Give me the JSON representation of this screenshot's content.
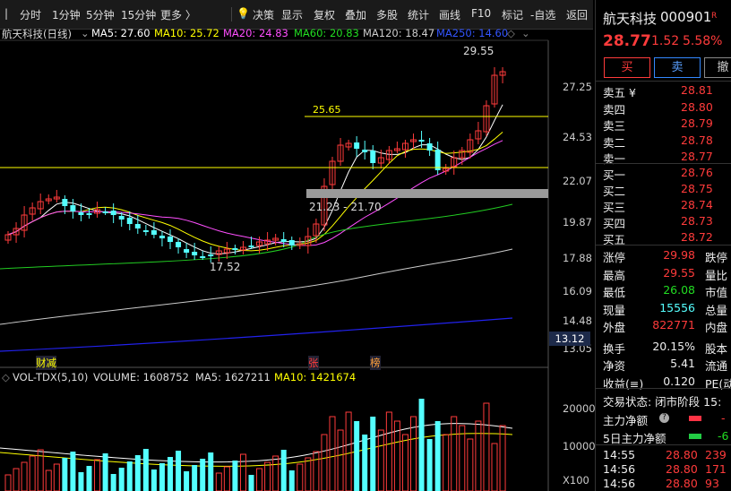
{
  "toolbar": {
    "items": [
      "分时",
      "1分钟",
      "5分钟",
      "15分钟",
      "更多 〉",
      "决策",
      "显示",
      "复权",
      "叠加",
      "多股",
      "统计",
      "画线",
      "F10",
      "标记",
      "-自选",
      "返回"
    ]
  },
  "kline_info": {
    "name": "航天科技(日线)",
    "ma5": "MA5: 27.60",
    "ma10": "MA10: 25.72",
    "ma20": "MA20: 24.83",
    "ma60": "MA60: 20.83",
    "ma120": "MA120: 18.47",
    "ma250": "MA250: 14.60"
  },
  "volume_info": {
    "label": "VOL-TDX(5,10)",
    "volume": "VOLUME: 1608752",
    "ma5": "MA5: 1627211",
    "ma10": "MA10: 1421674"
  },
  "axis": {
    "price_ticks": [
      "27.25",
      "24.53",
      "22.07",
      "19.87",
      "17.88",
      "16.09",
      "14.48",
      "13.05"
    ],
    "current_marker": "13.12",
    "vol_ticks": [
      "20000",
      "10000"
    ],
    "vol_unit": "X100"
  },
  "annotations": {
    "high": "29.55",
    "low": "17.52",
    "line_level": "25.65",
    "gap": "21.23 - 21.70",
    "marks": [
      "财减",
      "张",
      "榜"
    ]
  },
  "quote": {
    "name": "航天科技",
    "code": "000901",
    "tag": "R",
    "price": "28.77",
    "change": "1.52",
    "change_pct": "5.58%",
    "buy_label": "买",
    "sell_label": "卖",
    "cancel_label": "撤"
  },
  "orderbook": {
    "asks": [
      {
        "label": "卖五 ¥",
        "price": "28.81"
      },
      {
        "label": "卖四",
        "price": "28.80"
      },
      {
        "label": "卖三",
        "price": "28.79"
      },
      {
        "label": "卖二",
        "price": "28.78"
      },
      {
        "label": "卖一",
        "price": "28.77"
      }
    ],
    "bids": [
      {
        "label": "买一",
        "price": "28.76"
      },
      {
        "label": "买二",
        "price": "28.75"
      },
      {
        "label": "买三",
        "price": "28.74"
      },
      {
        "label": "买四",
        "price": "28.73"
      },
      {
        "label": "买五",
        "price": "28.72"
      }
    ]
  },
  "stats": [
    {
      "label": "涨停",
      "value": "29.98",
      "label2": "跌停"
    },
    {
      "label": "最高",
      "value": "29.55",
      "label2": "量比"
    },
    {
      "label": "最低",
      "value": "26.08",
      "label2": "市值"
    },
    {
      "label": "现量",
      "value": "15556",
      "label2": "总量"
    },
    {
      "label": "外盘",
      "value": "822771",
      "label2": "内盘"
    },
    {
      "label": "换手",
      "value": "20.15%",
      "label2": "股本"
    },
    {
      "label": "净资",
      "value": "5.41",
      "label2": "流通"
    },
    {
      "label": "收益(≡)",
      "value": "0.120",
      "label2": "PE(动"
    }
  ],
  "trade_status": "交易状态: 闭市阶段 15:",
  "flow": [
    {
      "label": "主力净额",
      "value": "-"
    },
    {
      "label": "5日主力净额",
      "value": "-6"
    }
  ],
  "ticks": [
    {
      "time": "14:55",
      "price": "28.80",
      "vol": "239"
    },
    {
      "time": "14:56",
      "price": "28.80",
      "vol": "171"
    },
    {
      "time": "14:56",
      "price": "28.80",
      "vol": "93"
    }
  ],
  "colors": {
    "up": "#ff3b3b",
    "down": "#54ffff",
    "ma5": "#ffffff",
    "ma10": "#ffff00",
    "ma20": "#ff4fff",
    "ma60": "#22cc22",
    "ma120": "#cccccc",
    "ma250": "#2222ee"
  }
}
